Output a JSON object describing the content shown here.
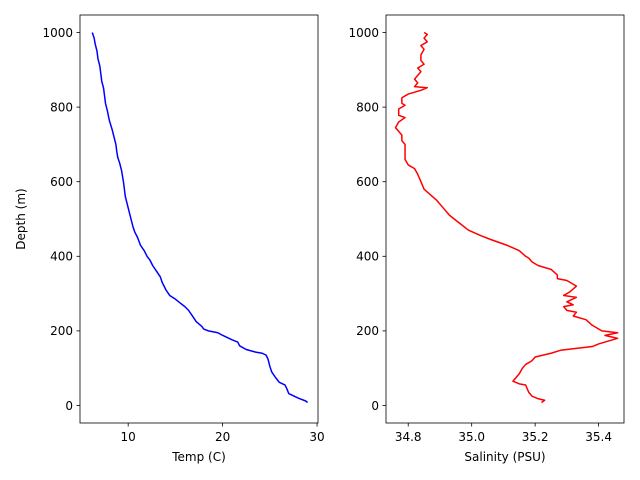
{
  "chart_data": [
    {
      "type": "line",
      "title": "",
      "xlabel": "Temp (C)",
      "ylabel": "Depth (m)",
      "xlim": [
        4.9,
        30.1
      ],
      "ylim": [
        -47,
        1047
      ],
      "xticks": [
        10,
        20,
        30
      ],
      "yticks": [
        0,
        200,
        400,
        600,
        800,
        1000
      ],
      "grid": false,
      "series": [
        {
          "color": "#0000ff",
          "points": [
            [
              29.0,
              8
            ],
            [
              28.8,
              12
            ],
            [
              28.0,
              20
            ],
            [
              27.0,
              32
            ],
            [
              26.8,
              45
            ],
            [
              26.6,
              55
            ],
            [
              26.0,
              62
            ],
            [
              25.6,
              75
            ],
            [
              25.2,
              90
            ],
            [
              25.0,
              105
            ],
            [
              24.8,
              125
            ],
            [
              24.6,
              135
            ],
            [
              24.2,
              140
            ],
            [
              23.5,
              143
            ],
            [
              22.5,
              150
            ],
            [
              21.8,
              160
            ],
            [
              21.6,
              170
            ],
            [
              21.0,
              176
            ],
            [
              20.5,
              182
            ],
            [
              20.0,
              188
            ],
            [
              19.5,
              195
            ],
            [
              18.5,
              200
            ],
            [
              18.0,
              205
            ],
            [
              17.8,
              212
            ],
            [
              17.2,
              225
            ],
            [
              16.8,
              240
            ],
            [
              16.4,
              255
            ],
            [
              16.0,
              265
            ],
            [
              15.5,
              275
            ],
            [
              15.0,
              285
            ],
            [
              14.4,
              295
            ],
            [
              14.0,
              310
            ],
            [
              13.6,
              330
            ],
            [
              13.4,
              345
            ],
            [
              13.0,
              360
            ],
            [
              12.6,
              375
            ],
            [
              12.3,
              390
            ],
            [
              12.0,
              400
            ],
            [
              11.7,
              415
            ],
            [
              11.3,
              430
            ],
            [
              11.0,
              450
            ],
            [
              10.7,
              465
            ],
            [
              10.5,
              480
            ],
            [
              10.3,
              500
            ],
            [
              10.1,
              520
            ],
            [
              9.9,
              540
            ],
            [
              9.7,
              560
            ],
            [
              9.6,
              580
            ],
            [
              9.5,
              600
            ],
            [
              9.3,
              630
            ],
            [
              9.1,
              650
            ],
            [
              8.9,
              665
            ],
            [
              8.8,
              680
            ],
            [
              8.7,
              700
            ],
            [
              8.5,
              720
            ],
            [
              8.3,
              740
            ],
            [
              8.0,
              765
            ],
            [
              7.8,
              790
            ],
            [
              7.6,
              810
            ],
            [
              7.5,
              830
            ],
            [
              7.4,
              850
            ],
            [
              7.2,
              870
            ],
            [
              7.1,
              890
            ],
            [
              7.0,
              910
            ],
            [
              6.8,
              930
            ],
            [
              6.7,
              950
            ],
            [
              6.5,
              970
            ],
            [
              6.4,
              985
            ],
            [
              6.2,
              1000
            ]
          ]
        }
      ]
    },
    {
      "type": "line",
      "title": "",
      "xlabel": "Salinity (PSU)",
      "ylabel": "",
      "xlim": [
        34.73,
        35.48
      ],
      "ylim": [
        -47,
        1047
      ],
      "xticks": [
        34.8,
        35.0,
        35.2,
        35.4
      ],
      "xtick_labels": [
        "34.8",
        "35.0",
        "35.2",
        "35.4"
      ],
      "yticks": [
        0,
        200,
        400,
        600,
        800,
        1000
      ],
      "grid": false,
      "series": [
        {
          "color": "#ff0000",
          "points": [
            [
              35.22,
              8
            ],
            [
              35.23,
              14
            ],
            [
              35.21,
              18
            ],
            [
              35.19,
              25
            ],
            [
              35.18,
              35
            ],
            [
              35.17,
              55
            ],
            [
              35.15,
              58
            ],
            [
              35.13,
              65
            ],
            [
              35.14,
              75
            ],
            [
              35.15,
              85
            ],
            [
              35.16,
              100
            ],
            [
              35.17,
              110
            ],
            [
              35.19,
              120
            ],
            [
              35.2,
              130
            ],
            [
              35.25,
              140
            ],
            [
              35.28,
              148
            ],
            [
              35.32,
              152
            ],
            [
              35.38,
              158
            ],
            [
              35.4,
              165
            ],
            [
              35.44,
              175
            ],
            [
              35.46,
              180
            ],
            [
              35.42,
              188
            ],
            [
              35.46,
              195
            ],
            [
              35.41,
              200
            ],
            [
              35.38,
              215
            ],
            [
              35.36,
              230
            ],
            [
              35.32,
              240
            ],
            [
              35.33,
              250
            ],
            [
              35.3,
              255
            ],
            [
              35.29,
              265
            ],
            [
              35.32,
              270
            ],
            [
              35.3,
              278
            ],
            [
              35.33,
              290
            ],
            [
              35.29,
              295
            ],
            [
              35.31,
              305
            ],
            [
              35.33,
              320
            ],
            [
              35.3,
              335
            ],
            [
              35.27,
              340
            ],
            [
              35.27,
              350
            ],
            [
              35.25,
              365
            ],
            [
              35.21,
              375
            ],
            [
              35.19,
              385
            ],
            [
              35.18,
              395
            ],
            [
              35.17,
              400
            ],
            [
              35.15,
              415
            ],
            [
              35.11,
              430
            ],
            [
              35.06,
              445
            ],
            [
              35.03,
              455
            ],
            [
              34.99,
              470
            ],
            [
              34.96,
              490
            ],
            [
              34.93,
              510
            ],
            [
              34.91,
              530
            ],
            [
              34.89,
              550
            ],
            [
              34.87,
              565
            ],
            [
              34.85,
              580
            ],
            [
              34.84,
              600
            ],
            [
              34.83,
              620
            ],
            [
              34.82,
              635
            ],
            [
              34.8,
              645
            ],
            [
              34.79,
              660
            ],
            [
              34.79,
              680
            ],
            [
              34.79,
              700
            ],
            [
              34.78,
              710
            ],
            [
              34.78,
              725
            ],
            [
              34.77,
              735
            ],
            [
              34.76,
              745
            ],
            [
              34.77,
              760
            ],
            [
              34.79,
              772
            ],
            [
              34.77,
              778
            ],
            [
              34.77,
              795
            ],
            [
              34.79,
              805
            ],
            [
              34.78,
              810
            ],
            [
              34.78,
              825
            ],
            [
              34.8,
              835
            ],
            [
              34.84,
              845
            ],
            [
              34.86,
              852
            ],
            [
              34.82,
              855
            ],
            [
              34.83,
              865
            ],
            [
              34.82,
              875
            ],
            [
              34.83,
              885
            ],
            [
              34.84,
              895
            ],
            [
              34.83,
              905
            ],
            [
              34.85,
              915
            ],
            [
              34.84,
              925
            ],
            [
              34.84,
              940
            ],
            [
              34.85,
              955
            ],
            [
              34.84,
              965
            ],
            [
              34.86,
              975
            ],
            [
              34.85,
              985
            ],
            [
              34.86,
              995
            ],
            [
              34.85,
              1000
            ]
          ]
        }
      ]
    }
  ]
}
